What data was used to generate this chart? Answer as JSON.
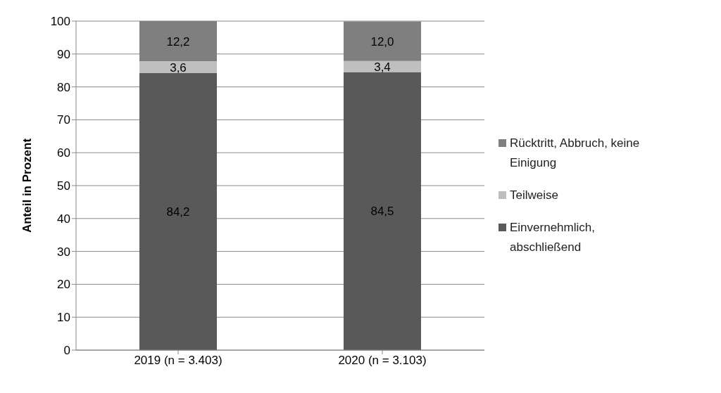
{
  "chart_data": {
    "type": "bar",
    "stacked": true,
    "ylabel": "Anteil in Prozent",
    "categories": [
      "2019 (n = 3.403)",
      "2020 (n = 3.103)"
    ],
    "series": [
      {
        "name": "Einvernehmlich, abschließend",
        "color": "#595959",
        "values": [
          84.2,
          84.5
        ],
        "value_labels": [
          "84,2",
          "84,5"
        ]
      },
      {
        "name": "Teilweise",
        "color": "#bfbfbf",
        "values": [
          3.6,
          3.4
        ],
        "value_labels": [
          "3,6",
          "3,4"
        ]
      },
      {
        "name": "Rücktritt, Abbruch, keine Einigung",
        "color": "#7f7f7f",
        "values": [
          12.2,
          12.0
        ],
        "value_labels": [
          "12,2",
          "12,0"
        ]
      }
    ],
    "ylim": [
      0,
      100
    ],
    "yticks": [
      0,
      10,
      20,
      30,
      40,
      50,
      60,
      70,
      80,
      90,
      100
    ],
    "grid": "y",
    "legend": "right"
  }
}
